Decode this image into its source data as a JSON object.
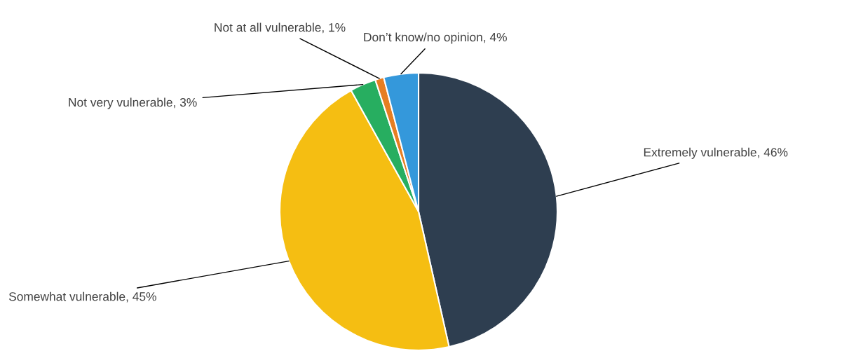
{
  "chart_data": {
    "type": "pie",
    "categories": [
      "Extremely vulnerable",
      "Somewhat vulnerable",
      "Not very vulnerable",
      "Not at all vulnerable",
      "Don’t know/no opinion"
    ],
    "values": [
      46,
      45,
      3,
      1,
      4
    ],
    "value_labels": [
      "46%",
      "45%",
      "3%",
      "1%",
      "4%"
    ],
    "colors": [
      "#2e3e50",
      "#f5be12",
      "#27ae60",
      "#e67e22",
      "#3498db"
    ],
    "legend": false
  }
}
